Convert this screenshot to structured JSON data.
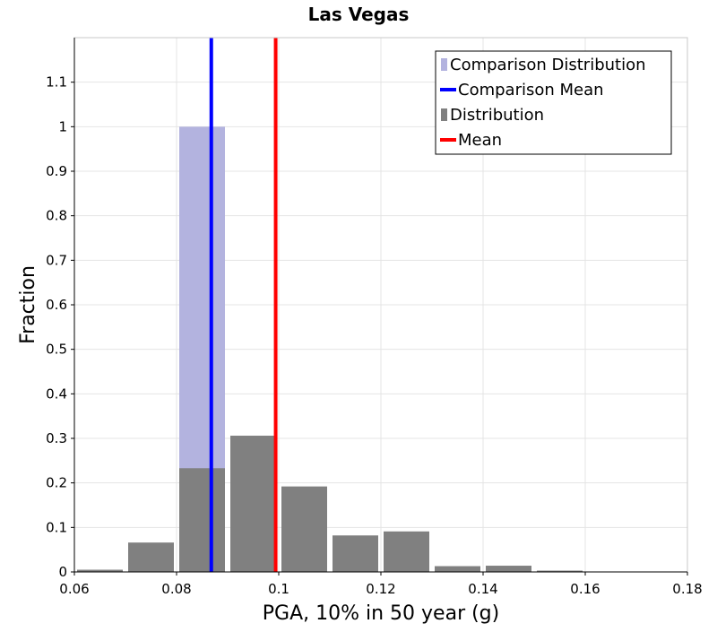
{
  "chart_data": {
    "type": "bar",
    "title": "Las Vegas",
    "xlabel": "PGA, 10% in 50 year (g)",
    "ylabel": "Fraction",
    "xlim": [
      0.06,
      0.18
    ],
    "ylim": [
      0,
      1.2
    ],
    "xticks": [
      "0.06",
      "0.08",
      "0.1",
      "0.12",
      "0.14",
      "0.16",
      "0.18"
    ],
    "yticks": [
      "0",
      "0.1",
      "0.2",
      "0.3",
      "0.4",
      "0.5",
      "0.6",
      "0.7",
      "0.8",
      "0.9",
      "1",
      "1.1"
    ],
    "bin_width": 0.01,
    "grid": true,
    "legend_position": "top-right",
    "series": [
      {
        "name": "Comparison Distribution",
        "kind": "histogram",
        "color": "#b3b3df",
        "bins": [
          {
            "x": 0.085,
            "y": 1.0
          }
        ]
      },
      {
        "name": "Distribution",
        "kind": "histogram",
        "color": "#808080",
        "bins": [
          {
            "x": 0.065,
            "y": 0.005
          },
          {
            "x": 0.075,
            "y": 0.066
          },
          {
            "x": 0.085,
            "y": 0.233
          },
          {
            "x": 0.095,
            "y": 0.306
          },
          {
            "x": 0.105,
            "y": 0.192
          },
          {
            "x": 0.115,
            "y": 0.082
          },
          {
            "x": 0.125,
            "y": 0.091
          },
          {
            "x": 0.135,
            "y": 0.013
          },
          {
            "x": 0.145,
            "y": 0.014
          },
          {
            "x": 0.155,
            "y": 0.003
          }
        ]
      },
      {
        "name": "Comparison Mean",
        "kind": "vline",
        "color": "#0000ff",
        "x": 0.0868
      },
      {
        "name": "Mean",
        "kind": "vline",
        "color": "#ff0000",
        "x": 0.0994
      }
    ],
    "legend": [
      {
        "label": "Comparison Distribution",
        "symbol": "square",
        "color": "#b3b3df"
      },
      {
        "label": "Comparison Mean",
        "symbol": "line",
        "color": "#0000ff"
      },
      {
        "label": "Distribution",
        "symbol": "square",
        "color": "#808080"
      },
      {
        "label": "Mean",
        "symbol": "line",
        "color": "#ff0000"
      }
    ]
  }
}
